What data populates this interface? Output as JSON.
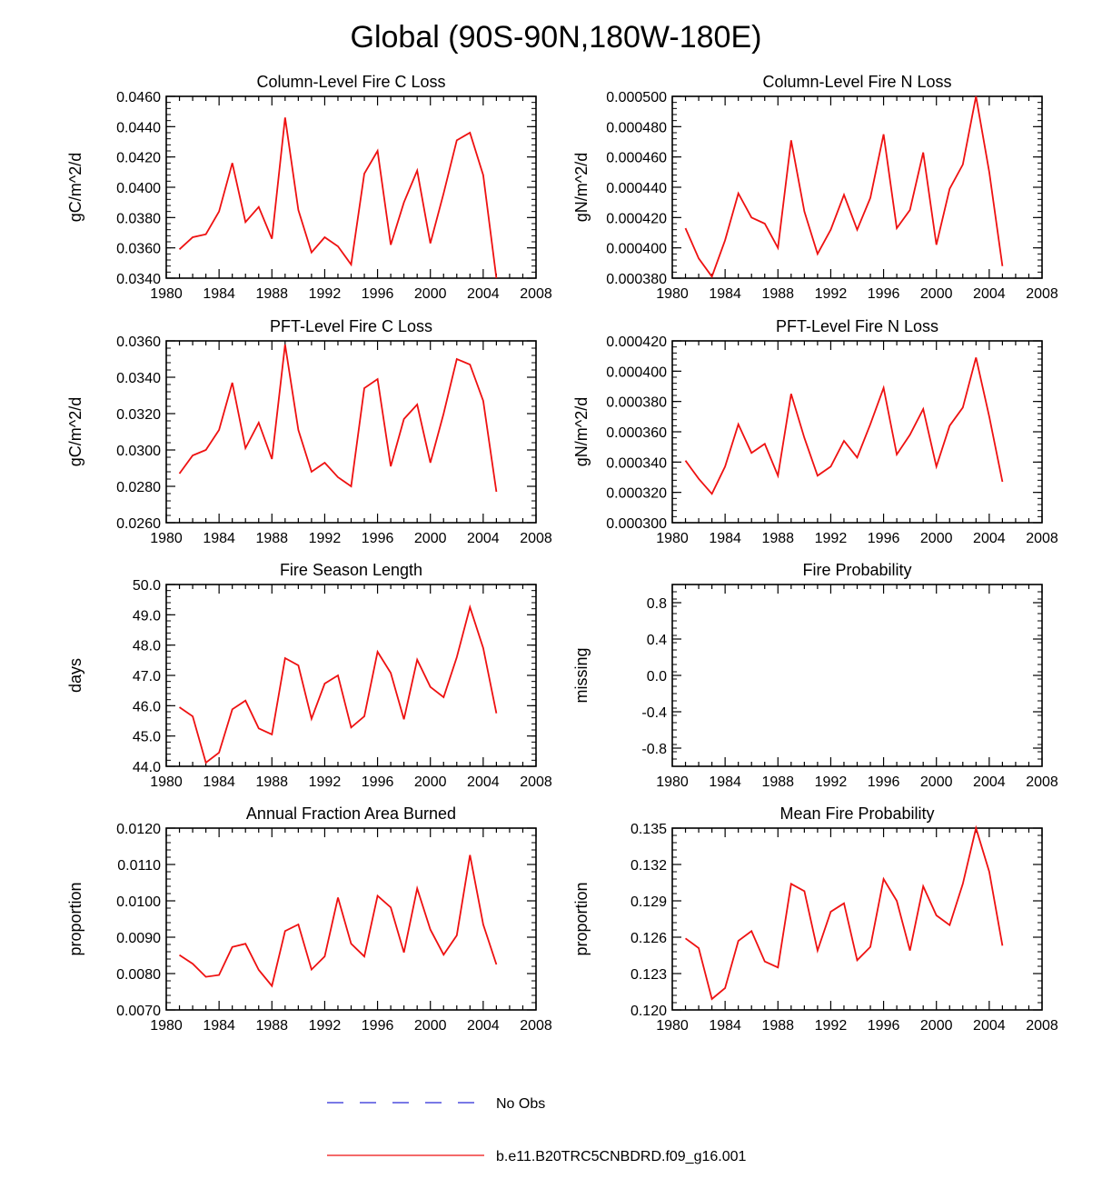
{
  "title": "Global (90S-90N,180W-180E)",
  "colors": {
    "series": "#ee1111",
    "obs": "#2b2bd6",
    "axis": "#000000"
  },
  "legend": [
    {
      "label": "No Obs",
      "style": "dashed",
      "color": "#2b2bd6"
    },
    {
      "label": "b.e11.B20TRC5CNBDRD.f09_g16.001",
      "style": "solid",
      "color": "#ee1111"
    }
  ],
  "chart_data": [
    {
      "type": "line",
      "title": "Column-Level Fire C Loss",
      "ylabel": "gC/m^2/d",
      "xlim": [
        1980,
        2008
      ],
      "xticks": [
        "1980",
        "1984",
        "1988",
        "1992",
        "1996",
        "2000",
        "2004",
        "2008"
      ],
      "ylim": [
        0.034,
        0.046
      ],
      "yticks": [
        "0.0340",
        "0.0360",
        "0.0380",
        "0.0400",
        "0.0420",
        "0.0440",
        "0.0460"
      ],
      "x": [
        1981,
        1982,
        1983,
        1984,
        1985,
        1986,
        1987,
        1988,
        1989,
        1990,
        1991,
        1992,
        1993,
        1994,
        1995,
        1996,
        1997,
        1998,
        1999,
        2000,
        2001,
        2002,
        2003,
        2004,
        2005
      ],
      "values": [
        0.0359,
        0.0367,
        0.0369,
        0.0384,
        0.0416,
        0.0377,
        0.0387,
        0.0366,
        0.0446,
        0.0385,
        0.0357,
        0.0367,
        0.0361,
        0.0349,
        0.0409,
        0.0424,
        0.0362,
        0.039,
        0.0411,
        0.0363,
        0.0396,
        0.0431,
        0.0436,
        0.0408,
        0.034
      ]
    },
    {
      "type": "line",
      "title": "Column-Level Fire N Loss",
      "ylabel": "gN/m^2/d",
      "xlim": [
        1980,
        2008
      ],
      "xticks": [
        "1980",
        "1984",
        "1988",
        "1992",
        "1996",
        "2000",
        "2004",
        "2008"
      ],
      "ylim": [
        0.00038,
        0.0005
      ],
      "yticks": [
        "0.000380",
        "0.000400",
        "0.000420",
        "0.000440",
        "0.000460",
        "0.000480",
        "0.000500"
      ],
      "x": [
        1981,
        1982,
        1983,
        1984,
        1985,
        1986,
        1987,
        1988,
        1989,
        1990,
        1991,
        1992,
        1993,
        1994,
        1995,
        1996,
        1997,
        1998,
        1999,
        2000,
        2001,
        2002,
        2003,
        2004,
        2005
      ],
      "values": [
        0.000413,
        0.000393,
        0.000381,
        0.000405,
        0.000436,
        0.00042,
        0.000416,
        0.0004,
        0.000471,
        0.000424,
        0.000396,
        0.000412,
        0.000435,
        0.000412,
        0.000433,
        0.000475,
        0.000413,
        0.000425,
        0.000463,
        0.000402,
        0.000439,
        0.000455,
        0.0005,
        0.00045,
        0.000388
      ]
    },
    {
      "type": "line",
      "title": "PFT-Level Fire C Loss",
      "ylabel": "gC/m^2/d",
      "xlim": [
        1980,
        2008
      ],
      "xticks": [
        "1980",
        "1984",
        "1988",
        "1992",
        "1996",
        "2000",
        "2004",
        "2008"
      ],
      "ylim": [
        0.026,
        0.036
      ],
      "yticks": [
        "0.0260",
        "0.0280",
        "0.0300",
        "0.0320",
        "0.0340",
        "0.0360"
      ],
      "x": [
        1981,
        1982,
        1983,
        1984,
        1985,
        1986,
        1987,
        1988,
        1989,
        1990,
        1991,
        1992,
        1993,
        1994,
        1995,
        1996,
        1997,
        1998,
        1999,
        2000,
        2001,
        2002,
        2003,
        2004,
        2005
      ],
      "values": [
        0.0287,
        0.0297,
        0.03,
        0.0311,
        0.0337,
        0.0301,
        0.0315,
        0.0295,
        0.0358,
        0.0311,
        0.0288,
        0.0293,
        0.0285,
        0.028,
        0.0334,
        0.0339,
        0.0291,
        0.0317,
        0.0325,
        0.0293,
        0.032,
        0.035,
        0.0347,
        0.0327,
        0.0277
      ]
    },
    {
      "type": "line",
      "title": "PFT-Level Fire N Loss",
      "ylabel": "gN/m^2/d",
      "xlim": [
        1980,
        2008
      ],
      "xticks": [
        "1980",
        "1984",
        "1988",
        "1992",
        "1996",
        "2000",
        "2004",
        "2008"
      ],
      "ylim": [
        0.0003,
        0.00042
      ],
      "yticks": [
        "0.000300",
        "0.000320",
        "0.000340",
        "0.000360",
        "0.000380",
        "0.000400",
        "0.000420"
      ],
      "x": [
        1981,
        1982,
        1983,
        1984,
        1985,
        1986,
        1987,
        1988,
        1989,
        1990,
        1991,
        1992,
        1993,
        1994,
        1995,
        1996,
        1997,
        1998,
        1999,
        2000,
        2001,
        2002,
        2003,
        2004,
        2005
      ],
      "values": [
        0.000341,
        0.000329,
        0.000319,
        0.000337,
        0.000365,
        0.000346,
        0.000352,
        0.000331,
        0.000385,
        0.000356,
        0.000331,
        0.000337,
        0.000354,
        0.000343,
        0.000365,
        0.000389,
        0.000345,
        0.000358,
        0.000375,
        0.000337,
        0.000364,
        0.000376,
        0.000409,
        0.00037,
        0.000327
      ]
    },
    {
      "type": "line",
      "title": "Fire Season Length",
      "ylabel": "days",
      "xlim": [
        1980,
        2008
      ],
      "xticks": [
        "1980",
        "1984",
        "1988",
        "1992",
        "1996",
        "2000",
        "2004",
        "2008"
      ],
      "ylim": [
        44.0,
        50.0
      ],
      "yticks": [
        "44.0",
        "45.0",
        "46.0",
        "47.0",
        "48.0",
        "49.0",
        "50.0"
      ],
      "x": [
        1981,
        1982,
        1983,
        1984,
        1985,
        1986,
        1987,
        1988,
        1989,
        1990,
        1991,
        1992,
        1993,
        1994,
        1995,
        1996,
        1997,
        1998,
        1999,
        2000,
        2001,
        2002,
        2003,
        2004,
        2005
      ],
      "values": [
        45.95,
        45.65,
        44.12,
        44.45,
        45.88,
        46.17,
        45.25,
        45.05,
        47.57,
        47.33,
        45.57,
        46.73,
        47.0,
        45.28,
        45.65,
        47.78,
        47.08,
        45.55,
        47.52,
        46.62,
        46.28,
        47.6,
        49.25,
        47.9,
        45.75
      ]
    },
    {
      "type": "line",
      "title": "Fire Probability",
      "ylabel": "missing",
      "xlim": [
        1980,
        2008
      ],
      "xticks": [
        "1980",
        "1984",
        "1988",
        "1992",
        "1996",
        "2000",
        "2004",
        "2008"
      ],
      "ylim": [
        -1.0,
        1.0
      ],
      "yticks": [
        "-0.8",
        "-0.4",
        "0.0",
        "0.4",
        "0.8"
      ],
      "ytickvalues": [
        -0.8,
        -0.4,
        0.0,
        0.4,
        0.8
      ],
      "x": [],
      "values": []
    },
    {
      "type": "line",
      "title": "Annual Fraction Area Burned",
      "ylabel": "proportion",
      "xlim": [
        1980,
        2008
      ],
      "xticks": [
        "1980",
        "1984",
        "1988",
        "1992",
        "1996",
        "2000",
        "2004",
        "2008"
      ],
      "ylim": [
        0.007,
        0.012
      ],
      "yticks": [
        "0.0070",
        "0.0080",
        "0.0090",
        "0.0100",
        "0.0110",
        "0.0120"
      ],
      "x": [
        1981,
        1982,
        1983,
        1984,
        1985,
        1986,
        1987,
        1988,
        1989,
        1990,
        1991,
        1992,
        1993,
        1994,
        1995,
        1996,
        1997,
        1998,
        1999,
        2000,
        2001,
        2002,
        2003,
        2004,
        2005
      ],
      "values": [
        0.00851,
        0.00827,
        0.00791,
        0.00796,
        0.00873,
        0.00882,
        0.0081,
        0.00766,
        0.00917,
        0.00935,
        0.00811,
        0.00847,
        0.01009,
        0.00882,
        0.00847,
        0.01014,
        0.00982,
        0.00858,
        0.01034,
        0.00921,
        0.00852,
        0.00905,
        0.01126,
        0.00935,
        0.00825
      ]
    },
    {
      "type": "line",
      "title": "Mean Fire Probability",
      "ylabel": "proportion",
      "xlim": [
        1980,
        2008
      ],
      "xticks": [
        "1980",
        "1984",
        "1988",
        "1992",
        "1996",
        "2000",
        "2004",
        "2008"
      ],
      "ylim": [
        0.12,
        0.135
      ],
      "yticks": [
        "0.120",
        "0.123",
        "0.126",
        "0.129",
        "0.132",
        "0.135"
      ],
      "x": [
        1981,
        1982,
        1983,
        1984,
        1985,
        1986,
        1987,
        1988,
        1989,
        1990,
        1991,
        1992,
        1993,
        1994,
        1995,
        1996,
        1997,
        1998,
        1999,
        2000,
        2001,
        2002,
        2003,
        2004,
        2005
      ],
      "values": [
        0.1259,
        0.1251,
        0.1209,
        0.1218,
        0.1257,
        0.1265,
        0.124,
        0.1235,
        0.1304,
        0.1298,
        0.1249,
        0.1281,
        0.1288,
        0.1241,
        0.1252,
        0.1308,
        0.129,
        0.1249,
        0.1302,
        0.1278,
        0.127,
        0.1304,
        0.135,
        0.1314,
        0.1253
      ]
    }
  ]
}
